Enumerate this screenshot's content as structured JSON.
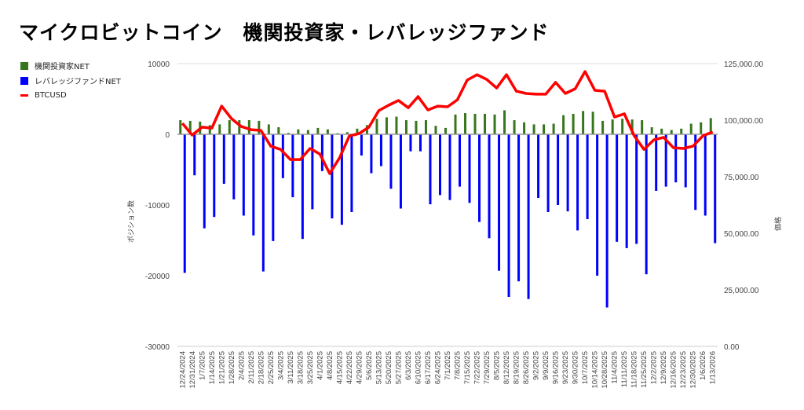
{
  "chart_data": {
    "type": "bar+line",
    "title": "マイクロビットコイン　機関投資家・レバレッジファンド",
    "ylabel_left": "ポジション数",
    "ylabel_right": "価格",
    "ylim_left": [
      -30000,
      10000
    ],
    "yticks_left": [
      "10000",
      "0",
      "-10000",
      "-20000",
      "-30000"
    ],
    "ylim_right": [
      0,
      125000
    ],
    "yticks_right": [
      "125,000.00",
      "100,000.00",
      "75,000.00",
      "50,000.00",
      "25,000.00",
      "0.00"
    ],
    "legend_position": "top-left",
    "categories": [
      "12/24/2024",
      "12/31/2024",
      "1/7/2025",
      "1/14/2025",
      "1/21/2025",
      "1/28/2025",
      "2/4/2025",
      "2/11/2025",
      "2/18/2025",
      "2/25/2025",
      "3/4/2025",
      "3/11/2025",
      "3/18/2025",
      "3/25/2025",
      "4/1/2025",
      "4/8/2025",
      "4/15/2025",
      "4/22/2025",
      "4/29/2025",
      "5/6/2025",
      "5/13/2025",
      "5/20/2025",
      "5/27/2025",
      "6/3/2025",
      "6/10/2025",
      "6/17/2025",
      "6/24/2025",
      "7/1/2025",
      "7/8/2025",
      "7/15/2025",
      "7/22/2025",
      "7/29/2025",
      "8/5/2025",
      "8/12/2025",
      "8/19/2025",
      "8/26/2025",
      "9/2/2025",
      "9/9/2025",
      "9/16/2025",
      "9/23/2025",
      "9/30/2025",
      "10/7/2025",
      "10/14/2025",
      "10/28/2025",
      "11/4/2025",
      "11/11/2025",
      "11/18/2025",
      "11/25/2025",
      "12/2/2025",
      "12/9/2025",
      "12/16/2025",
      "12/23/2025",
      "12/30/2025",
      "1/6/2026",
      "1/13/2026"
    ],
    "series": [
      {
        "name": "機関投資家NET",
        "type": "bar",
        "color": "#38761d",
        "values": [
          2000,
          1900,
          1800,
          1300,
          1400,
          2000,
          2000,
          2000,
          1900,
          1400,
          1000,
          200,
          700,
          600,
          900,
          700,
          150,
          300,
          800,
          1300,
          2200,
          2400,
          2500,
          2000,
          1900,
          2000,
          1200,
          900,
          2800,
          3000,
          2900,
          2900,
          2800,
          3400,
          2000,
          1700,
          1400,
          1400,
          1500,
          2700,
          2900,
          3300,
          3200,
          1900,
          2100,
          2200,
          2100,
          2000,
          1000,
          800,
          600,
          800,
          1500,
          1700,
          2300
        ]
      },
      {
        "name": "レバレッジファンドNET",
        "type": "bar",
        "color": "#0000ff",
        "values": [
          -19600,
          -5800,
          -13300,
          -11700,
          -7000,
          -9200,
          -11500,
          -14300,
          -19400,
          -15100,
          -6200,
          -8900,
          -14800,
          -10600,
          -5200,
          -11900,
          -12800,
          -11000,
          -3000,
          -5500,
          -4500,
          -7700,
          -10500,
          -2400,
          -2400,
          -9900,
          -8600,
          -9300,
          -7400,
          -9700,
          -12400,
          -14700,
          -19300,
          -23000,
          -20800,
          -23300,
          -9000,
          -11000,
          -10000,
          -10900,
          -13600,
          -12000,
          -20000,
          -24500,
          -15200,
          -16100,
          -15500,
          -19800,
          -8000,
          -7400,
          -6800,
          -7500,
          -10700,
          -11500,
          -15400
        ]
      },
      {
        "name": "BTCUSD",
        "type": "line",
        "axis": "right",
        "color": "#ff0000",
        "values": [
          98600,
          93400,
          96900,
          96500,
          106200,
          100700,
          97200,
          95800,
          95500,
          88500,
          87100,
          82600,
          82600,
          87500,
          85000,
          76400,
          83300,
          93000,
          94100,
          96900,
          104200,
          106600,
          108700,
          105500,
          110400,
          104500,
          106200,
          105900,
          109000,
          117700,
          120100,
          118000,
          114200,
          120100,
          112800,
          111800,
          111500,
          111500,
          116700,
          111800,
          113900,
          121500,
          113200,
          112800,
          101400,
          102800,
          93100,
          87100,
          91300,
          92400,
          87800,
          87500,
          88500,
          93100,
          94800
        ]
      }
    ]
  }
}
